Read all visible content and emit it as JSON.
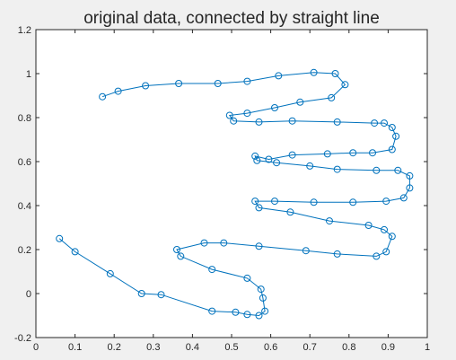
{
  "chart_data": {
    "type": "line",
    "title": "original data, connected by straight line",
    "xlabel": "",
    "ylabel": "",
    "xlim": [
      0,
      1
    ],
    "ylim": [
      -0.2,
      1.2
    ],
    "x_ticks": [
      0,
      0.1,
      0.2,
      0.3,
      0.4,
      0.5,
      0.6,
      0.7,
      0.8,
      0.9,
      1
    ],
    "x_tick_labels": [
      "0",
      "0.1",
      "0.2",
      "0.3",
      "0.4",
      "0.5",
      "0.6",
      "0.7",
      "0.8",
      "0.9",
      "1"
    ],
    "y_ticks": [
      -0.2,
      0,
      0.2,
      0.4,
      0.6,
      0.8,
      1,
      1.2
    ],
    "y_tick_labels": [
      "-0.2",
      "0",
      "0.2",
      "0.4",
      "0.6",
      "0.8",
      "1",
      "1.2"
    ],
    "grid": false,
    "marker": "circle",
    "color": "#0072bd",
    "plot_background": "#ffffff",
    "figure_background": "#f0f0f0",
    "series": [
      {
        "points": [
          [
            0.06,
            0.25
          ],
          [
            0.1,
            0.19
          ],
          [
            0.19,
            0.09
          ],
          [
            0.27,
            0.0
          ],
          [
            0.32,
            -0.005
          ],
          [
            0.45,
            -0.08
          ],
          [
            0.51,
            -0.085
          ],
          [
            0.54,
            -0.095
          ],
          [
            0.57,
            -0.1
          ],
          [
            0.585,
            -0.08
          ],
          [
            0.58,
            -0.02
          ],
          [
            0.575,
            0.02
          ],
          [
            0.54,
            0.07
          ],
          [
            0.45,
            0.11
          ],
          [
            0.37,
            0.17
          ],
          [
            0.36,
            0.2
          ],
          [
            0.43,
            0.23
          ],
          [
            0.48,
            0.23
          ],
          [
            0.57,
            0.215
          ],
          [
            0.69,
            0.195
          ],
          [
            0.77,
            0.18
          ],
          [
            0.87,
            0.17
          ],
          [
            0.895,
            0.19
          ],
          [
            0.91,
            0.26
          ],
          [
            0.89,
            0.29
          ],
          [
            0.85,
            0.31
          ],
          [
            0.75,
            0.33
          ],
          [
            0.65,
            0.37
          ],
          [
            0.57,
            0.39
          ],
          [
            0.56,
            0.42
          ],
          [
            0.61,
            0.42
          ],
          [
            0.71,
            0.415
          ],
          [
            0.81,
            0.415
          ],
          [
            0.895,
            0.42
          ],
          [
            0.94,
            0.435
          ],
          [
            0.955,
            0.48
          ],
          [
            0.955,
            0.535
          ],
          [
            0.925,
            0.56
          ],
          [
            0.87,
            0.56
          ],
          [
            0.77,
            0.565
          ],
          [
            0.7,
            0.58
          ],
          [
            0.615,
            0.595
          ],
          [
            0.565,
            0.605
          ],
          [
            0.56,
            0.625
          ],
          [
            0.595,
            0.61
          ],
          [
            0.655,
            0.63
          ],
          [
            0.745,
            0.635
          ],
          [
            0.81,
            0.64
          ],
          [
            0.86,
            0.64
          ],
          [
            0.91,
            0.655
          ],
          [
            0.92,
            0.715
          ],
          [
            0.91,
            0.755
          ],
          [
            0.89,
            0.775
          ],
          [
            0.865,
            0.775
          ],
          [
            0.77,
            0.78
          ],
          [
            0.655,
            0.785
          ],
          [
            0.57,
            0.78
          ],
          [
            0.505,
            0.785
          ],
          [
            0.495,
            0.81
          ],
          [
            0.54,
            0.82
          ],
          [
            0.61,
            0.845
          ],
          [
            0.675,
            0.87
          ],
          [
            0.755,
            0.89
          ],
          [
            0.79,
            0.95
          ],
          [
            0.765,
            1.0
          ],
          [
            0.71,
            1.005
          ],
          [
            0.62,
            0.99
          ],
          [
            0.54,
            0.965
          ],
          [
            0.465,
            0.955
          ],
          [
            0.365,
            0.955
          ],
          [
            0.28,
            0.945
          ],
          [
            0.21,
            0.92
          ],
          [
            0.17,
            0.895
          ]
        ]
      }
    ]
  }
}
